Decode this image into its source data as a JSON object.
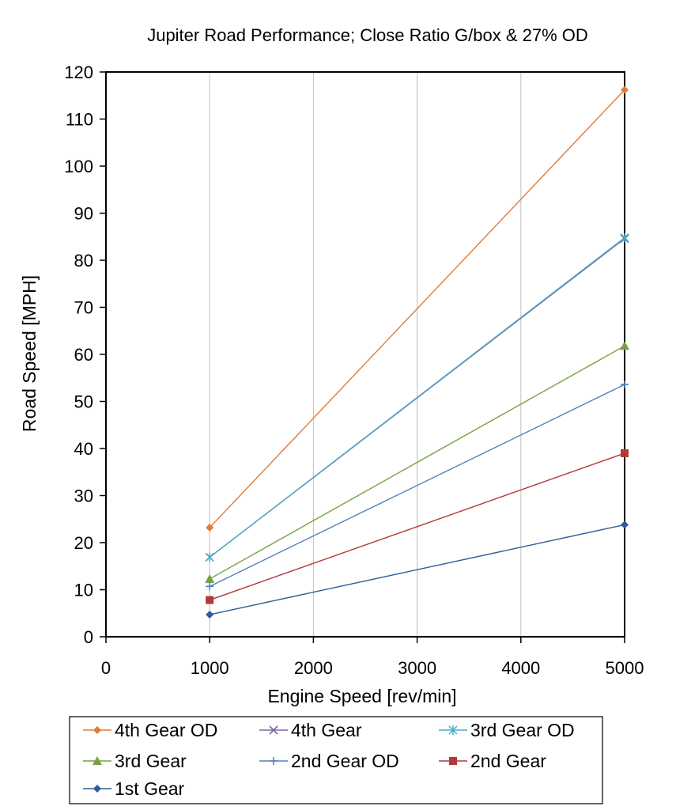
{
  "chart_data": {
    "type": "line",
    "title": "Jupiter Road Performance; Close Ratio G/box & 27% OD",
    "xlabel": "Engine Speed [rev/min]",
    "ylabel": "Road Speed [MPH]",
    "xlim": [
      0,
      5000
    ],
    "ylim": [
      0,
      120
    ],
    "xticks": [
      0,
      1000,
      2000,
      3000,
      4000,
      5000
    ],
    "yticks": [
      0,
      10,
      20,
      30,
      40,
      50,
      60,
      70,
      80,
      90,
      100,
      110,
      120
    ],
    "grid": "vertical",
    "legend_position": "bottom",
    "x": [
      1000,
      5000
    ],
    "series": [
      {
        "name": "4th Gear OD",
        "values": [
          23.2,
          116.2
        ],
        "color": "#E07B39",
        "marker": "diamond"
      },
      {
        "name": "4th Gear",
        "values": [
          16.9,
          84.6
        ],
        "color": "#8064A2",
        "marker": "x"
      },
      {
        "name": "3rd Gear OD",
        "values": [
          16.9,
          84.8
        ],
        "color": "#4BACC6",
        "marker": "asterisk"
      },
      {
        "name": "3rd Gear",
        "values": [
          12.3,
          61.8
        ],
        "color": "#77A040",
        "marker": "triangle"
      },
      {
        "name": "2nd Gear OD",
        "values": [
          10.7,
          53.6
        ],
        "color": "#4F81BD",
        "marker": "plus"
      },
      {
        "name": "2nd Gear",
        "values": [
          7.8,
          39.0
        ],
        "color": "#B03A3A",
        "marker": "square"
      },
      {
        "name": "1st Gear",
        "values": [
          4.7,
          23.8
        ],
        "color": "#2E5C9A",
        "marker": "diamond"
      }
    ]
  }
}
